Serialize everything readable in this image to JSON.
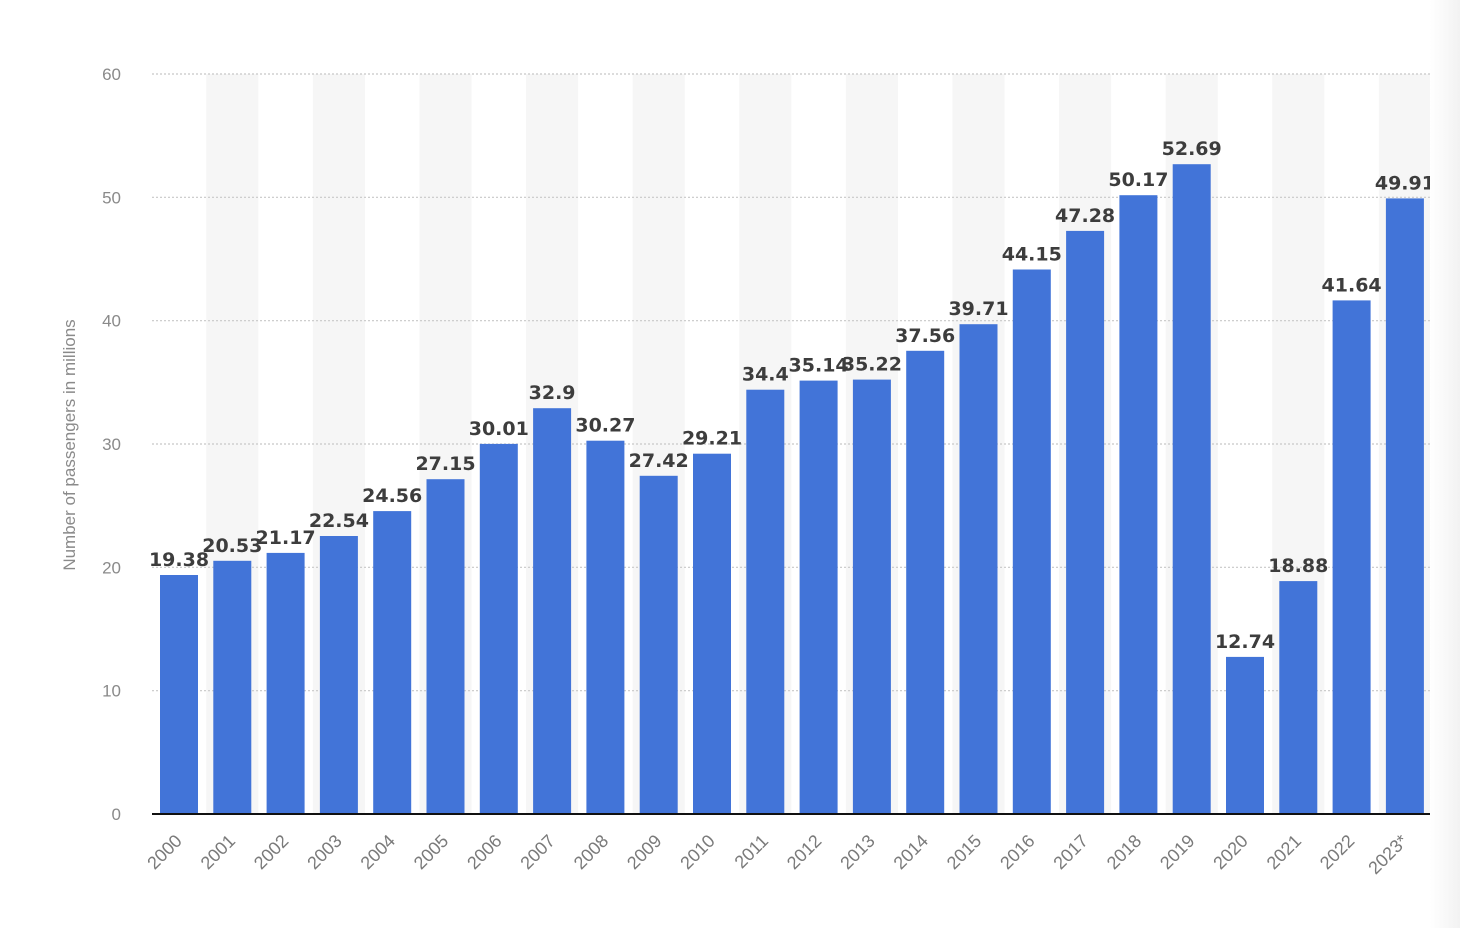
{
  "chart_data": {
    "type": "bar",
    "title": "",
    "xlabel": "",
    "ylabel": "Number of passengers in millions",
    "ylim": [
      0,
      60
    ],
    "yticks": [
      0,
      10,
      20,
      30,
      40,
      50,
      60
    ],
    "grid": true,
    "legend": "none",
    "colors": {
      "bar": "#4274d8",
      "grid": "#c8c8c8",
      "band": "#f6f6f6",
      "label": "#3d3d3d",
      "tick": "#8a8a8a"
    },
    "categories": [
      "2000",
      "2001",
      "2002",
      "2003",
      "2004",
      "2005",
      "2006",
      "2007",
      "2008",
      "2009",
      "2010",
      "2011",
      "2012",
      "2013",
      "2014",
      "2015",
      "2016",
      "2017",
      "2018",
      "2019",
      "2020",
      "2021",
      "2022",
      "2023*"
    ],
    "values": [
      19.38,
      20.53,
      21.17,
      22.54,
      24.56,
      27.15,
      30.01,
      32.9,
      30.27,
      27.42,
      29.21,
      34.4,
      35.14,
      35.22,
      37.56,
      39.71,
      44.15,
      47.28,
      50.17,
      52.69,
      12.74,
      18.88,
      41.64,
      49.91
    ]
  }
}
